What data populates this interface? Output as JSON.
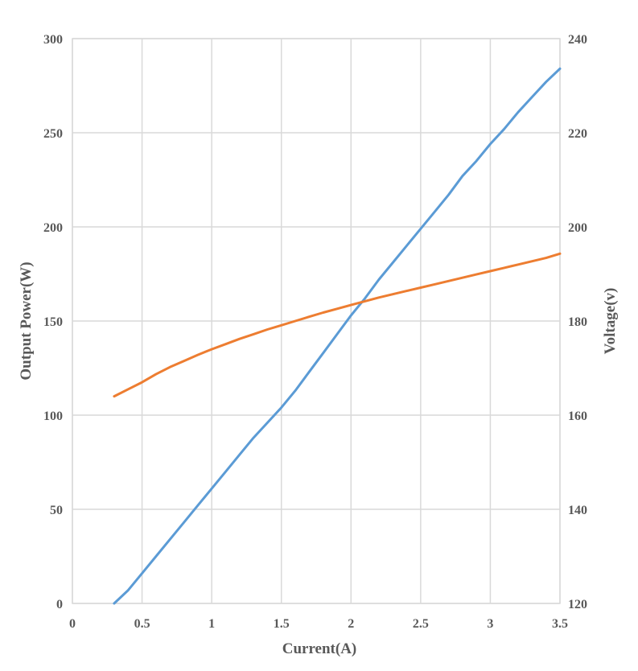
{
  "chart_data": {
    "type": "line",
    "title": "",
    "xlabel": "Current(A)",
    "ylabel": "Output Power(W)",
    "y2label": "Voltage(v)",
    "xlim": [
      0,
      3.5
    ],
    "ylim": [
      0,
      300
    ],
    "y2lim": [
      120,
      240
    ],
    "x_ticks": [
      "0",
      "0.5",
      "1",
      "1.5",
      "2",
      "2.5",
      "3",
      "3.5"
    ],
    "y_ticks": [
      "0",
      "50",
      "100",
      "150",
      "200",
      "250",
      "300"
    ],
    "y2_ticks": [
      "120",
      "140",
      "160",
      "180",
      "200",
      "220",
      "240"
    ],
    "grid": true,
    "legend": "none",
    "series": [
      {
        "axis": "left",
        "color": "#5b9bd5",
        "x": [
          0.3,
          0.4,
          0.5,
          0.6,
          0.7,
          0.8,
          0.9,
          1.0,
          1.1,
          1.2,
          1.3,
          1.4,
          1.5,
          1.6,
          1.7,
          1.8,
          1.9,
          2.0,
          2.1,
          2.2,
          2.3,
          2.4,
          2.5,
          2.6,
          2.7,
          2.8,
          2.9,
          3.0,
          3.1,
          3.2,
          3.3,
          3.4,
          3.5
        ],
        "values": [
          0,
          7,
          16,
          25,
          34,
          43,
          52,
          61,
          70,
          79,
          88,
          96,
          104,
          113,
          123,
          133,
          143,
          153,
          162,
          172,
          181,
          190,
          199,
          208,
          217,
          227,
          235,
          244,
          252,
          261,
          269,
          277,
          284
        ]
      },
      {
        "axis": "right",
        "color": "#ed7d31",
        "x": [
          0.3,
          0.4,
          0.5,
          0.6,
          0.7,
          0.8,
          0.9,
          1.0,
          1.1,
          1.2,
          1.3,
          1.4,
          1.5,
          1.6,
          1.7,
          1.8,
          1.9,
          2.0,
          2.1,
          2.2,
          2.3,
          2.4,
          2.5,
          2.6,
          2.7,
          2.8,
          2.9,
          3.0,
          3.1,
          3.2,
          3.3,
          3.4,
          3.5
        ],
        "values": [
          164,
          165.5,
          167,
          168.7,
          170.2,
          171.5,
          172.8,
          174,
          175.1,
          176.2,
          177.2,
          178.2,
          179.1,
          180,
          180.9,
          181.8,
          182.6,
          183.4,
          184.2,
          185,
          185.7,
          186.4,
          187.1,
          187.8,
          188.5,
          189.2,
          189.9,
          190.6,
          191.3,
          192,
          192.7,
          193.4,
          194.3
        ]
      }
    ]
  }
}
